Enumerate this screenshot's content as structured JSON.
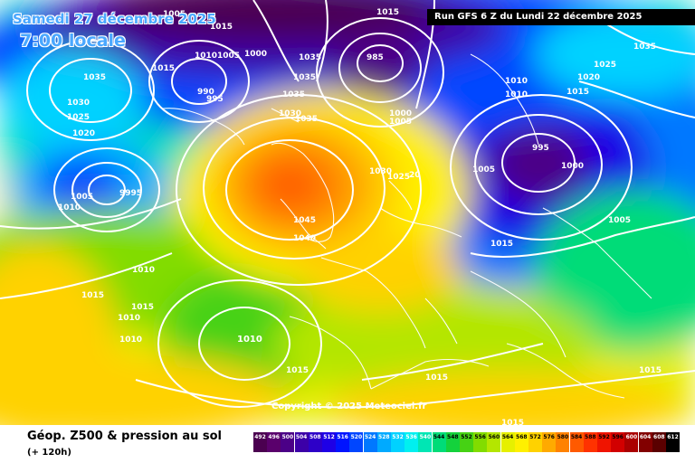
{
  "header": {
    "date": "Samedi 27 décembre 2025",
    "local_time": "7:00 locale",
    "run": "Run GFS 6 Z du Lundi 22 décembre 2025"
  },
  "copyright": "Copyright © 2025 Meteociel.fr",
  "footer": {
    "title": "Géop. Z500 & pression au sol",
    "subtitle": "(+ 120h)"
  },
  "legend": {
    "values": [
      "492",
      "496",
      "500",
      "504",
      "508",
      "512",
      "516",
      "520",
      "524",
      "528",
      "532",
      "536",
      "540",
      "544",
      "548",
      "552",
      "556",
      "560",
      "564",
      "568",
      "572",
      "576",
      "580",
      "584",
      "588",
      "592",
      "596",
      "600",
      "604",
      "608",
      "612"
    ],
    "colors": [
      "#4b0050",
      "#5a006c",
      "#4b0087",
      "#3c00a8",
      "#2d00c8",
      "#1e00e6",
      "#0014ff",
      "#0046ff",
      "#0078ff",
      "#00aaff",
      "#00d2ff",
      "#00f0f0",
      "#00e6b4",
      "#00dc78",
      "#14d23c",
      "#46d214",
      "#82dc00",
      "#b4e600",
      "#e6f000",
      "#fff000",
      "#ffd200",
      "#ffaa00",
      "#ff8200",
      "#ff5a00",
      "#ff3200",
      "#f01400",
      "#d20000",
      "#aa0000",
      "#820000",
      "#5a0000",
      "#000000"
    ]
  },
  "pressure_labels": [
    "1005",
    "1015",
    "1015",
    "1035",
    "1030",
    "1025",
    "1020",
    "1015",
    "1010",
    "1005",
    "1000",
    "995",
    "990",
    "985",
    "1035",
    "1035",
    "1035",
    "1030",
    "1035",
    "1000",
    "1005",
    "1010",
    "1010",
    "1030",
    "1025",
    "20",
    "1045",
    "1040",
    "1035",
    "1010",
    "1010",
    "1015",
    "1015",
    "1010",
    "1010",
    "1015",
    "1015",
    "995",
    "1000",
    "1005",
    "1015",
    "1035",
    "1025",
    "1020",
    "1015",
    "1005",
    "1010",
    "1015",
    "1015",
    "1005",
    "9995"
  ]
}
